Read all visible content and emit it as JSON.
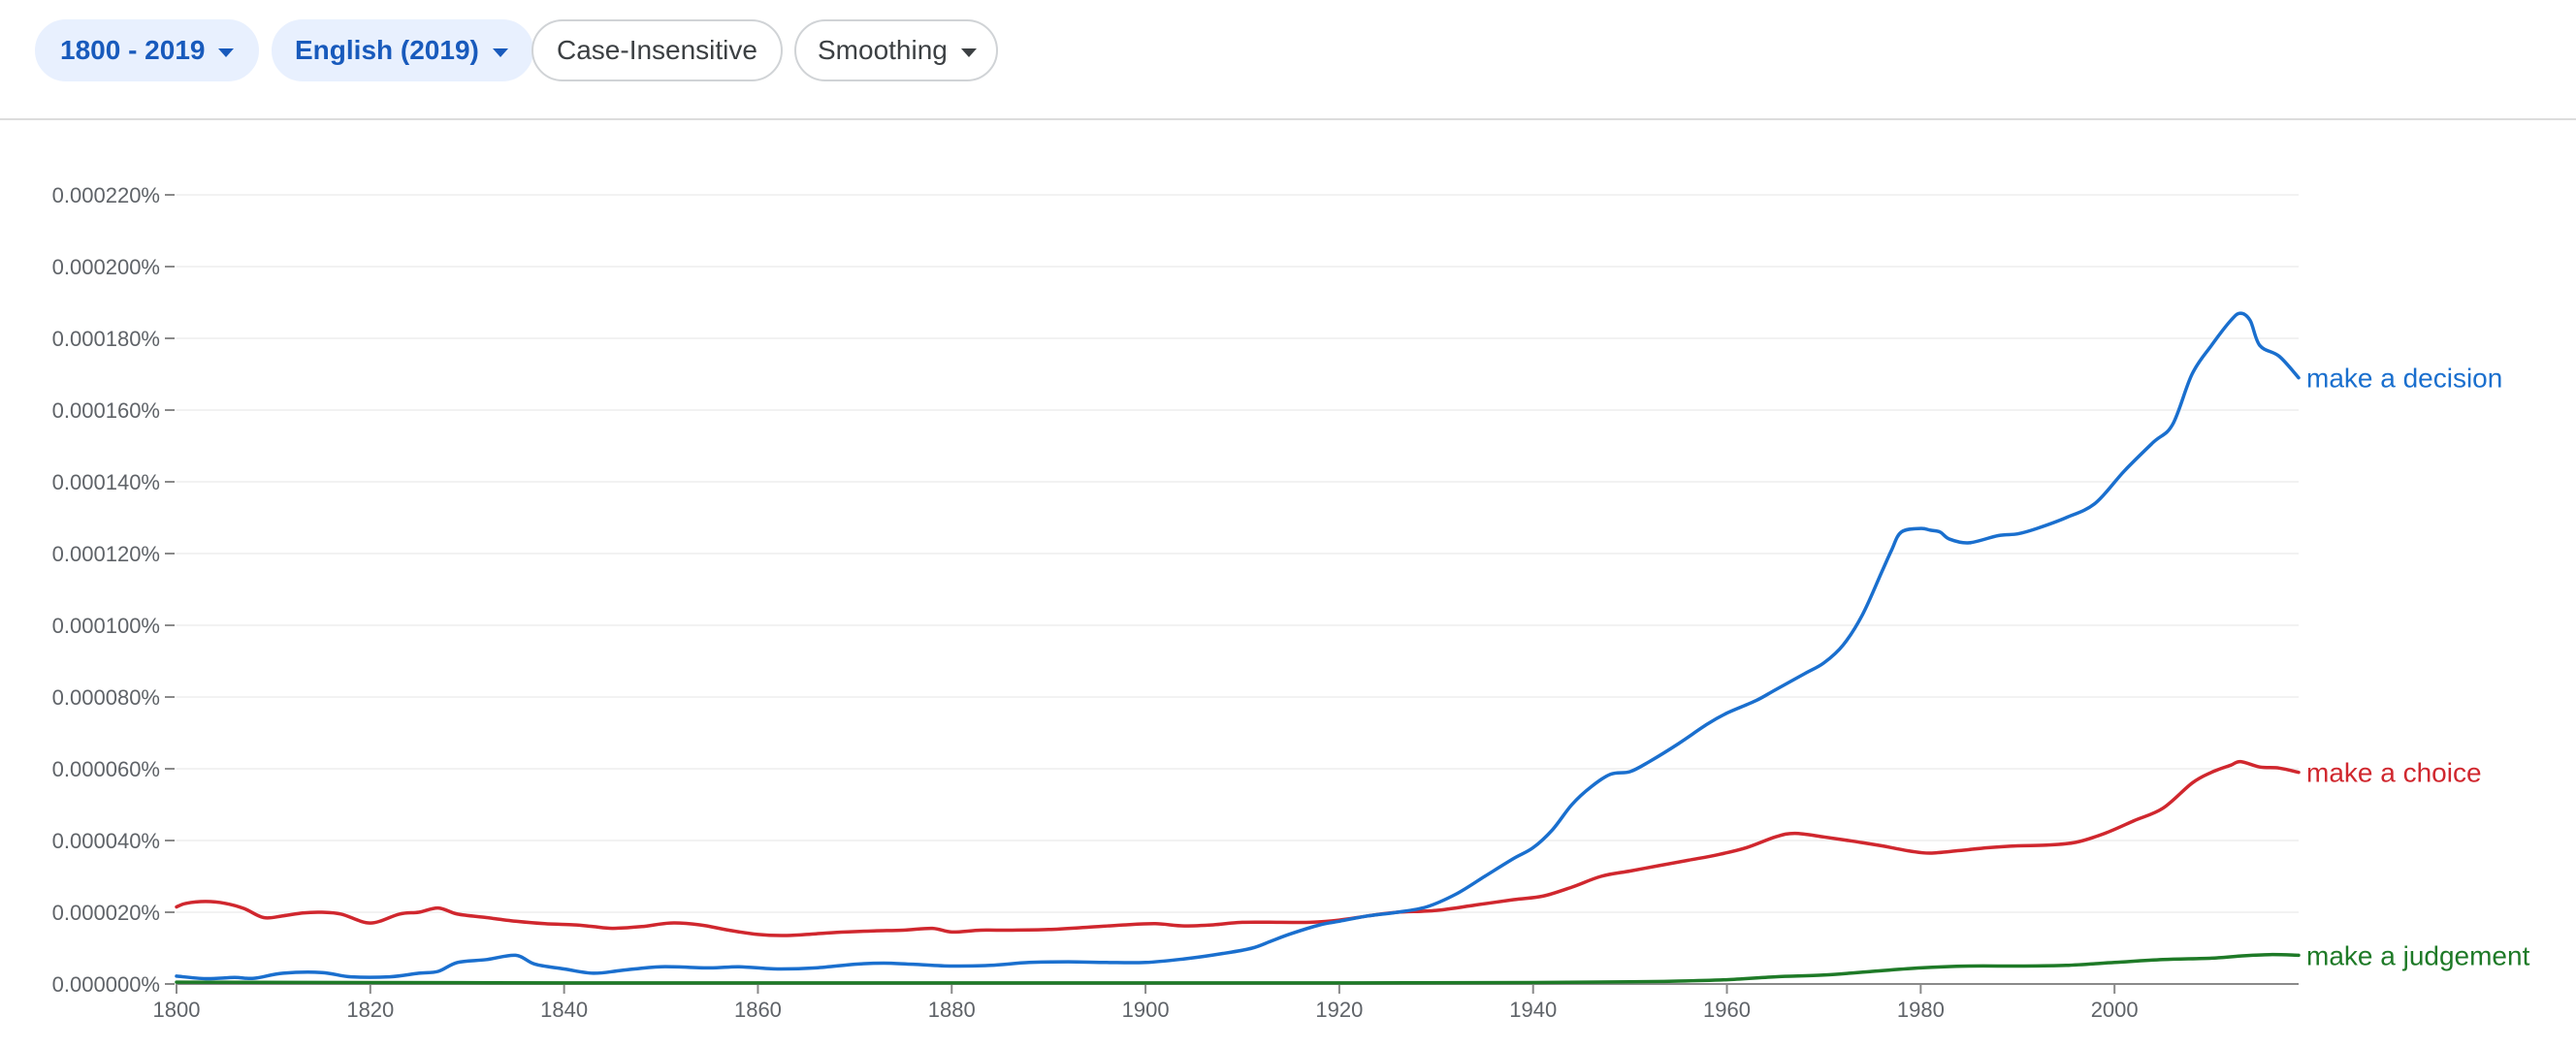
{
  "toolbar": {
    "years_label": "1800 - 2019",
    "corpus_label": "English (2019)",
    "case_label": "Case-Insensitive",
    "smoothing_label": "Smoothing"
  },
  "colors": {
    "make a decision": "#1a6fce",
    "make a choice": "#d0272e",
    "make a judgement": "#1e7a27",
    "grid": "#eeeeee",
    "axis": "#8a8a8a",
    "chip_active_bg": "#e8f0fe",
    "chip_active_text": "#185abc"
  },
  "chart_data": {
    "type": "line",
    "xlim": [
      1800,
      2019
    ],
    "ylim": [
      0,
      0.00022
    ],
    "yticks": [
      0,
      2e-05,
      4e-05,
      6e-05,
      8e-05,
      0.0001,
      0.00012,
      0.00014,
      0.00016,
      0.00018,
      0.0002,
      0.00022
    ],
    "ytick_labels": [
      "0.000000%",
      "0.000020%",
      "0.000040%",
      "0.000060%",
      "0.000080%",
      "0.000100%",
      "0.000120%",
      "0.000140%",
      "0.000160%",
      "0.000180%",
      "0.000200%",
      "0.000220%"
    ],
    "xticks": [
      1800,
      1820,
      1840,
      1860,
      1880,
      1900,
      1920,
      1940,
      1960,
      1980,
      2000
    ],
    "xtick_labels": [
      "1800",
      "1820",
      "1840",
      "1860",
      "1880",
      "1900",
      "1920",
      "1940",
      "1960",
      "1980",
      "2000"
    ],
    "grid": "horizontal",
    "legend": "inline labels at right end of each line",
    "series": [
      {
        "name": "make a decision",
        "x": [
          1800,
          1803,
          1806,
          1808,
          1811,
          1815,
          1818,
          1822,
          1825,
          1827,
          1829,
          1832,
          1835,
          1837,
          1840,
          1843,
          1846,
          1850,
          1855,
          1858,
          1862,
          1866,
          1870,
          1873,
          1876,
          1880,
          1884,
          1888,
          1892,
          1896,
          1900,
          1904,
          1908,
          1911,
          1913,
          1915,
          1918,
          1920,
          1923,
          1926,
          1929,
          1932,
          1935,
          1938,
          1940,
          1942,
          1944,
          1946,
          1948,
          1950,
          1952,
          1955,
          1958,
          1960,
          1963,
          1965,
          1968,
          1970,
          1972,
          1974,
          1976,
          1977,
          1978,
          1980,
          1981,
          1982,
          1983,
          1985,
          1988,
          1990,
          1992,
          1995,
          1998,
          2001,
          2004,
          2006,
          2008,
          2010,
          2012,
          2013,
          2014,
          2015,
          2017,
          2019
        ],
        "y": [
          2.2e-06,
          1.5e-06,
          1.8e-06,
          1.6e-06,
          3e-06,
          3.2e-06,
          2e-06,
          2e-06,
          3e-06,
          3.5e-06,
          6e-06,
          6.8e-06,
          8e-06,
          5.5e-06,
          4.2e-06,
          3e-06,
          3.8e-06,
          4.8e-06,
          4.5e-06,
          4.8e-06,
          4.2e-06,
          4.5e-06,
          5.5e-06,
          5.8e-06,
          5.5e-06,
          5e-06,
          5.2e-06,
          6e-06,
          6.2e-06,
          6e-06,
          6e-06,
          7e-06,
          8.5e-06,
          1e-05,
          1.2e-05,
          1.4e-05,
          1.65e-05,
          1.75e-05,
          1.9e-05,
          2e-05,
          2.15e-05,
          2.5e-05,
          3e-05,
          3.5e-05,
          3.8e-05,
          4.3e-05,
          5e-05,
          5.5e-05,
          5.85e-05,
          5.92e-05,
          6.2e-05,
          6.7e-05,
          7.25e-05,
          7.55e-05,
          7.9e-05,
          8.2e-05,
          8.65e-05,
          8.95e-05,
          9.45e-05,
          0.000103,
          0.000115,
          0.000121,
          0.000126,
          0.000127,
          0.0001265,
          0.000126,
          0.000124,
          0.000123,
          0.000125,
          0.0001255,
          0.000127,
          0.00013,
          0.000134,
          0.000143,
          0.000151,
          0.000156,
          0.00017,
          0.000178,
          0.000185,
          0.000187,
          0.000185,
          0.000178,
          0.000175,
          0.000169
        ]
      },
      {
        "name": "make a choice",
        "x": [
          1800,
          1801,
          1803,
          1805,
          1807,
          1809,
          1811,
          1813,
          1815,
          1817,
          1820,
          1823,
          1825,
          1827,
          1829,
          1832,
          1835,
          1838,
          1841,
          1843,
          1845,
          1848,
          1851,
          1854,
          1857,
          1860,
          1863,
          1866,
          1869,
          1872,
          1875,
          1878,
          1880,
          1883,
          1886,
          1890,
          1894,
          1898,
          1901,
          1904,
          1907,
          1910,
          1914,
          1917,
          1920,
          1923,
          1926,
          1930,
          1934,
          1938,
          1941,
          1944,
          1947,
          1950,
          1953,
          1956,
          1959,
          1962,
          1965,
          1967,
          1970,
          1973,
          1976,
          1979,
          1981,
          1984,
          1987,
          1990,
          1993,
          1996,
          1999,
          2002,
          2005,
          2008,
          2010,
          2012,
          2013,
          2015,
          2017,
          2019
        ],
        "y": [
          2.15e-05,
          2.25e-05,
          2.3e-05,
          2.25e-05,
          2.1e-05,
          1.85e-05,
          1.9e-05,
          1.98e-05,
          2e-05,
          1.95e-05,
          1.7e-05,
          1.95e-05,
          2e-05,
          2.12e-05,
          1.95e-05,
          1.85e-05,
          1.75e-05,
          1.68e-05,
          1.65e-05,
          1.6e-05,
          1.55e-05,
          1.6e-05,
          1.7e-05,
          1.65e-05,
          1.5e-05,
          1.38e-05,
          1.35e-05,
          1.4e-05,
          1.45e-05,
          1.48e-05,
          1.5e-05,
          1.55e-05,
          1.45e-05,
          1.5e-05,
          1.5e-05,
          1.52e-05,
          1.58e-05,
          1.65e-05,
          1.68e-05,
          1.62e-05,
          1.65e-05,
          1.72e-05,
          1.72e-05,
          1.72e-05,
          1.78e-05,
          1.9e-05,
          2e-05,
          2.05e-05,
          2.2e-05,
          2.35e-05,
          2.45e-05,
          2.7e-05,
          3e-05,
          3.15e-05,
          3.3e-05,
          3.45e-05,
          3.6e-05,
          3.8e-05,
          4.1e-05,
          4.2e-05,
          4.1e-05,
          3.98e-05,
          3.85e-05,
          3.7e-05,
          3.65e-05,
          3.72e-05,
          3.8e-05,
          3.85e-05,
          3.87e-05,
          3.95e-05,
          4.2e-05,
          4.55e-05,
          4.9e-05,
          5.6e-05,
          5.9e-05,
          6.1e-05,
          6.2e-05,
          6.05e-05,
          6.02e-05,
          5.9e-05
        ]
      },
      {
        "name": "make a judgement",
        "x": [
          1800,
          1820,
          1840,
          1860,
          1880,
          1900,
          1920,
          1940,
          1950,
          1955,
          1960,
          1965,
          1970,
          1975,
          1980,
          1985,
          1990,
          1995,
          2000,
          2005,
          2010,
          2013,
          2016,
          2019
        ],
        "y": [
          5e-07,
          4e-07,
          3e-07,
          3e-07,
          3e-07,
          3e-07,
          3e-07,
          4e-07,
          6e-07,
          8e-07,
          1.2e-06,
          2e-06,
          2.5e-06,
          3.5e-06,
          4.5e-06,
          5e-06,
          5e-06,
          5.2e-06,
          6e-06,
          6.8e-06,
          7.2e-06,
          7.8e-06,
          8.2e-06,
          8e-06
        ]
      }
    ]
  }
}
